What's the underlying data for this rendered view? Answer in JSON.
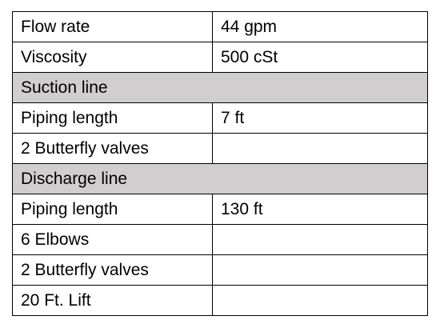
{
  "table": {
    "rows": [
      {
        "label": "Flow rate",
        "value": "44 gpm"
      },
      {
        "label": "Viscosity",
        "value": "500 cSt"
      },
      {
        "section": "Suction line"
      },
      {
        "label": "Piping length",
        "value": "7 ft"
      },
      {
        "label": "2 Butterfly valves"
      },
      {
        "section": "Discharge line"
      },
      {
        "label": "Piping length",
        "value": "130 ft"
      },
      {
        "label": "6 Elbows"
      },
      {
        "label": "2 Butterfly valves"
      },
      {
        "label": "20 Ft. Lift"
      }
    ]
  }
}
